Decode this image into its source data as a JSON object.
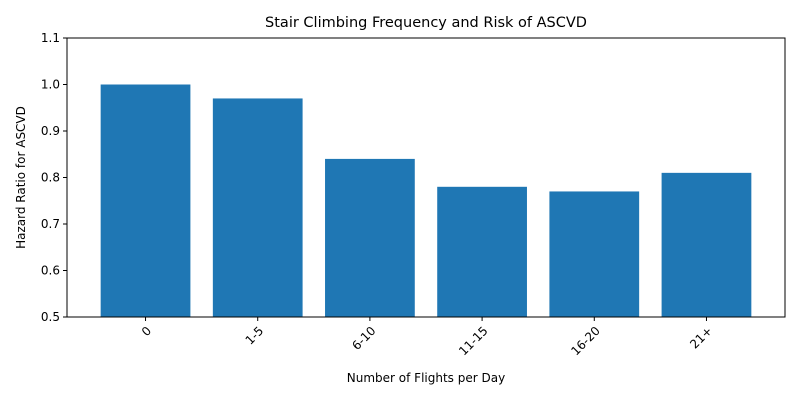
{
  "chart_data": {
    "type": "bar",
    "title": "Stair Climbing Frequency and Risk of ASCVD",
    "xlabel": "Number of Flights per Day",
    "ylabel": "Hazard Ratio for ASCVD",
    "categories": [
      "0",
      "1-5",
      "6-10",
      "11-15",
      "16-20",
      "21+"
    ],
    "values": [
      1.0,
      0.97,
      0.84,
      0.78,
      0.77,
      0.81
    ],
    "ylim": [
      0.5,
      1.1
    ],
    "yticks": [
      "0.5",
      "0.6",
      "0.7",
      "0.8",
      "0.9",
      "1.0",
      "1.1"
    ],
    "bar_color": "#1f77b4",
    "grid": false,
    "legend": "none",
    "x_tick_rotation": 45
  }
}
